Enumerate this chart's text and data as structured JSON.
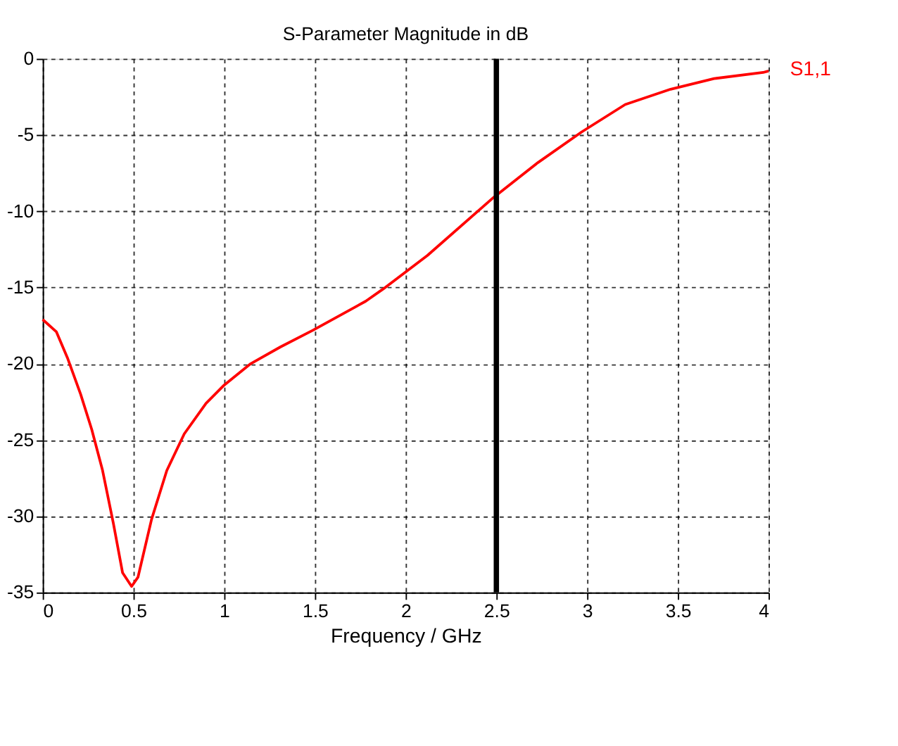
{
  "chart_data": {
    "type": "line",
    "title": "S-Parameter Magnitude in dB",
    "xlabel": "Frequency / GHz",
    "x": [
      0,
      0.075,
      0.136,
      0.209,
      0.27,
      0.33,
      0.39,
      0.44,
      0.49,
      0.525,
      0.6,
      0.684,
      0.78,
      0.9,
      1.0,
      1.146,
      1.31,
      1.49,
      1.78,
      1.876,
      2.12,
      2.484,
      2.73,
      2.97,
      3.21,
      3.46,
      3.7,
      3.97,
      4.0
    ],
    "series": [
      {
        "name": "S1,1",
        "color": "#ff0000",
        "values": [
          -17.1,
          -17.9,
          -19.6,
          -22,
          -24.3,
          -27,
          -30.5,
          -33.7,
          -34.6,
          -34,
          -30.2,
          -27,
          -24.6,
          -22.6,
          -21.4,
          -20,
          -18.9,
          -17.8,
          -15.9,
          -15.1,
          -12.9,
          -9.1,
          -6.8,
          -4.8,
          -3.0,
          -2.0,
          -1.3,
          -0.9,
          -0.8
        ]
      }
    ],
    "xlim": [
      0,
      4
    ],
    "xticks": [
      0,
      0.5,
      1,
      1.5,
      2,
      2.5,
      3,
      3.5,
      4
    ],
    "ylim": [
      -35,
      0
    ],
    "yticks": [
      0,
      -5,
      -10,
      -15,
      -20,
      -25,
      -30,
      -35
    ],
    "ref_lines": [
      {
        "axis": "x",
        "value": 2.5,
        "color": "#000000",
        "line_style": "solid"
      }
    ],
    "grid": true,
    "legend": false,
    "marker": "none",
    "line_style": "solid"
  }
}
